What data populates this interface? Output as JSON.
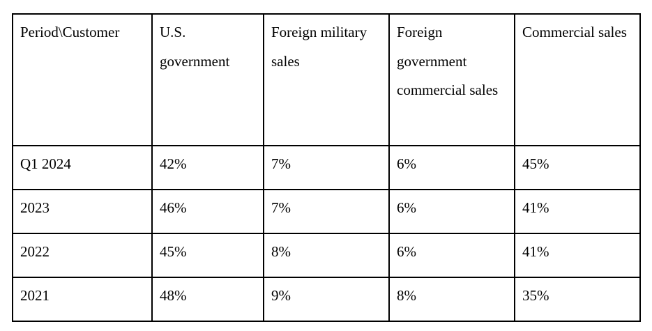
{
  "table": {
    "headers": [
      "Period\\Customer",
      "U.S. government",
      "Foreign military sales",
      "Foreign government commercial sales",
      "Commercial sales"
    ],
    "rows": [
      [
        "Q1 2024",
        "42%",
        "7%",
        "6%",
        "45%"
      ],
      [
        "2023",
        "46%",
        "7%",
        "6%",
        "41%"
      ],
      [
        "2022",
        "45%",
        "8%",
        "6%",
        "41%"
      ],
      [
        "2021",
        "48%",
        "9%",
        "8%",
        "35%"
      ]
    ]
  }
}
